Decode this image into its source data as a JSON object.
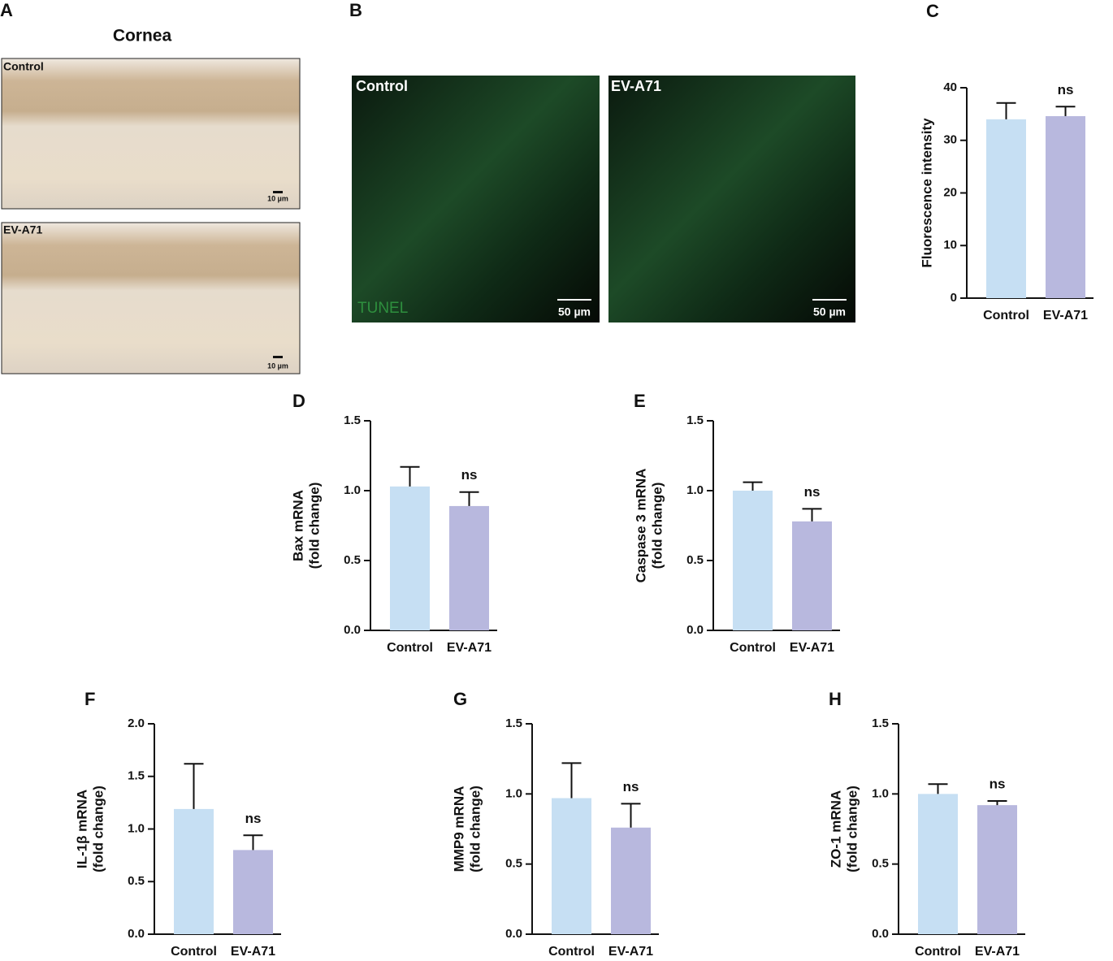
{
  "images": {
    "A": {
      "letter": "A",
      "title": "Cornea",
      "panels": [
        {
          "label": "Control",
          "scale": "10 µm"
        },
        {
          "label": "EV-A71",
          "scale": "10 µm"
        }
      ]
    },
    "B": {
      "letter": "B",
      "panels": [
        {
          "label": "Control",
          "stain": "TUNEL",
          "scale": "50 µm"
        },
        {
          "label": "EV-A71",
          "scale": "50 µm"
        }
      ]
    }
  },
  "chart_data": [
    {
      "type": "bar",
      "panel": "C",
      "ylabel": [
        "Fluorescence intensity"
      ],
      "categories": [
        "Control",
        "EV-A71"
      ],
      "values": [
        34.0,
        34.6
      ],
      "errors": [
        3.1,
        1.8
      ],
      "colors": [
        "#c6dff3",
        "#b8b8de"
      ],
      "annotation": "ns",
      "ylim": [
        0,
        40
      ],
      "yticks": [
        0,
        10,
        20,
        30,
        40
      ]
    },
    {
      "type": "bar",
      "panel": "D",
      "ylabel": [
        "Bax mRNA",
        "(fold change)"
      ],
      "categories": [
        "Control",
        "EV-A71"
      ],
      "values": [
        1.03,
        0.89
      ],
      "errors": [
        0.14,
        0.1
      ],
      "colors": [
        "#c6dff3",
        "#b8b8de"
      ],
      "annotation": "ns",
      "ylim": [
        0,
        1.5
      ],
      "yticks": [
        {
          "value": 0,
          "label": "0.0"
        },
        0.5,
        {
          "value": 1,
          "label": "1.0"
        },
        1.5
      ]
    },
    {
      "type": "bar",
      "panel": "E",
      "ylabel": [
        "Caspase 3 mRNA",
        "(fold change)"
      ],
      "categories": [
        "Control",
        "EV-A71"
      ],
      "values": [
        1.0,
        0.78
      ],
      "errors": [
        0.06,
        0.09
      ],
      "colors": [
        "#c6dff3",
        "#b8b8de"
      ],
      "annotation": "ns",
      "ylim": [
        0,
        1.5
      ],
      "yticks": [
        {
          "value": 0,
          "label": "0.0"
        },
        0.5,
        {
          "value": 1,
          "label": "1.0"
        },
        1.5
      ]
    },
    {
      "type": "bar",
      "panel": "F",
      "ylabel": [
        "IL-1β mRNA",
        "(fold change)"
      ],
      "categories": [
        "Control",
        "EV-A71"
      ],
      "values": [
        1.19,
        0.8
      ],
      "errors": [
        0.43,
        0.14
      ],
      "colors": [
        "#c6dff3",
        "#b8b8de"
      ],
      "annotation": "ns",
      "ylim": [
        0,
        2
      ],
      "yticks": [
        {
          "value": 0,
          "label": "0.0"
        },
        0.5,
        {
          "value": 1,
          "label": "1.0"
        },
        1.5,
        {
          "value": 2,
          "label": "2.0"
        }
      ]
    },
    {
      "type": "bar",
      "panel": "G",
      "ylabel": [
        "MMP9 mRNA",
        "(fold change)"
      ],
      "categories": [
        "Control",
        "EV-A71"
      ],
      "values": [
        0.97,
        0.76
      ],
      "errors": [
        0.25,
        0.17
      ],
      "colors": [
        "#c6dff3",
        "#b8b8de"
      ],
      "annotation": "ns",
      "ylim": [
        0,
        1.5
      ],
      "yticks": [
        {
          "value": 0,
          "label": "0.0"
        },
        0.5,
        {
          "value": 1,
          "label": "1.0"
        },
        1.5
      ]
    },
    {
      "type": "bar",
      "panel": "H",
      "ylabel": [
        "ZO-1 mRNA",
        "(fold change)"
      ],
      "categories": [
        "Control",
        "EV-A71"
      ],
      "values": [
        1.0,
        0.92
      ],
      "errors": [
        0.07,
        0.03
      ],
      "colors": [
        "#c6dff3",
        "#b8b8de"
      ],
      "annotation": "ns",
      "ylim": [
        0,
        1.5
      ],
      "yticks": [
        {
          "value": 0,
          "label": "0.0"
        },
        0.5,
        {
          "value": 1,
          "label": "1.0"
        },
        1.5
      ]
    }
  ]
}
